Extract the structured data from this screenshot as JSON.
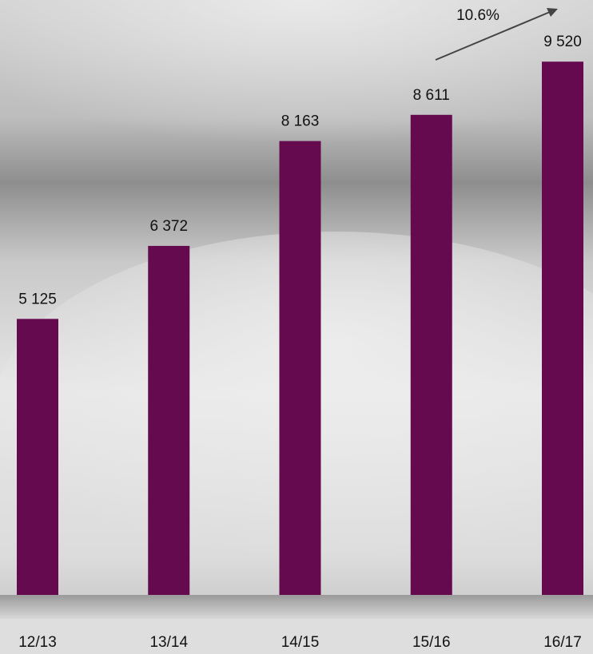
{
  "chart_data": {
    "type": "bar",
    "categories": [
      "12/13",
      "13/14",
      "14/15",
      "15/16",
      "16/17"
    ],
    "values": [
      5125,
      6372,
      8163,
      8611,
      9520
    ],
    "value_labels": [
      "5 125",
      "6 372",
      "8 163",
      "8 611",
      "9 520"
    ],
    "color": "#660a50",
    "annotation": "10.6%"
  }
}
